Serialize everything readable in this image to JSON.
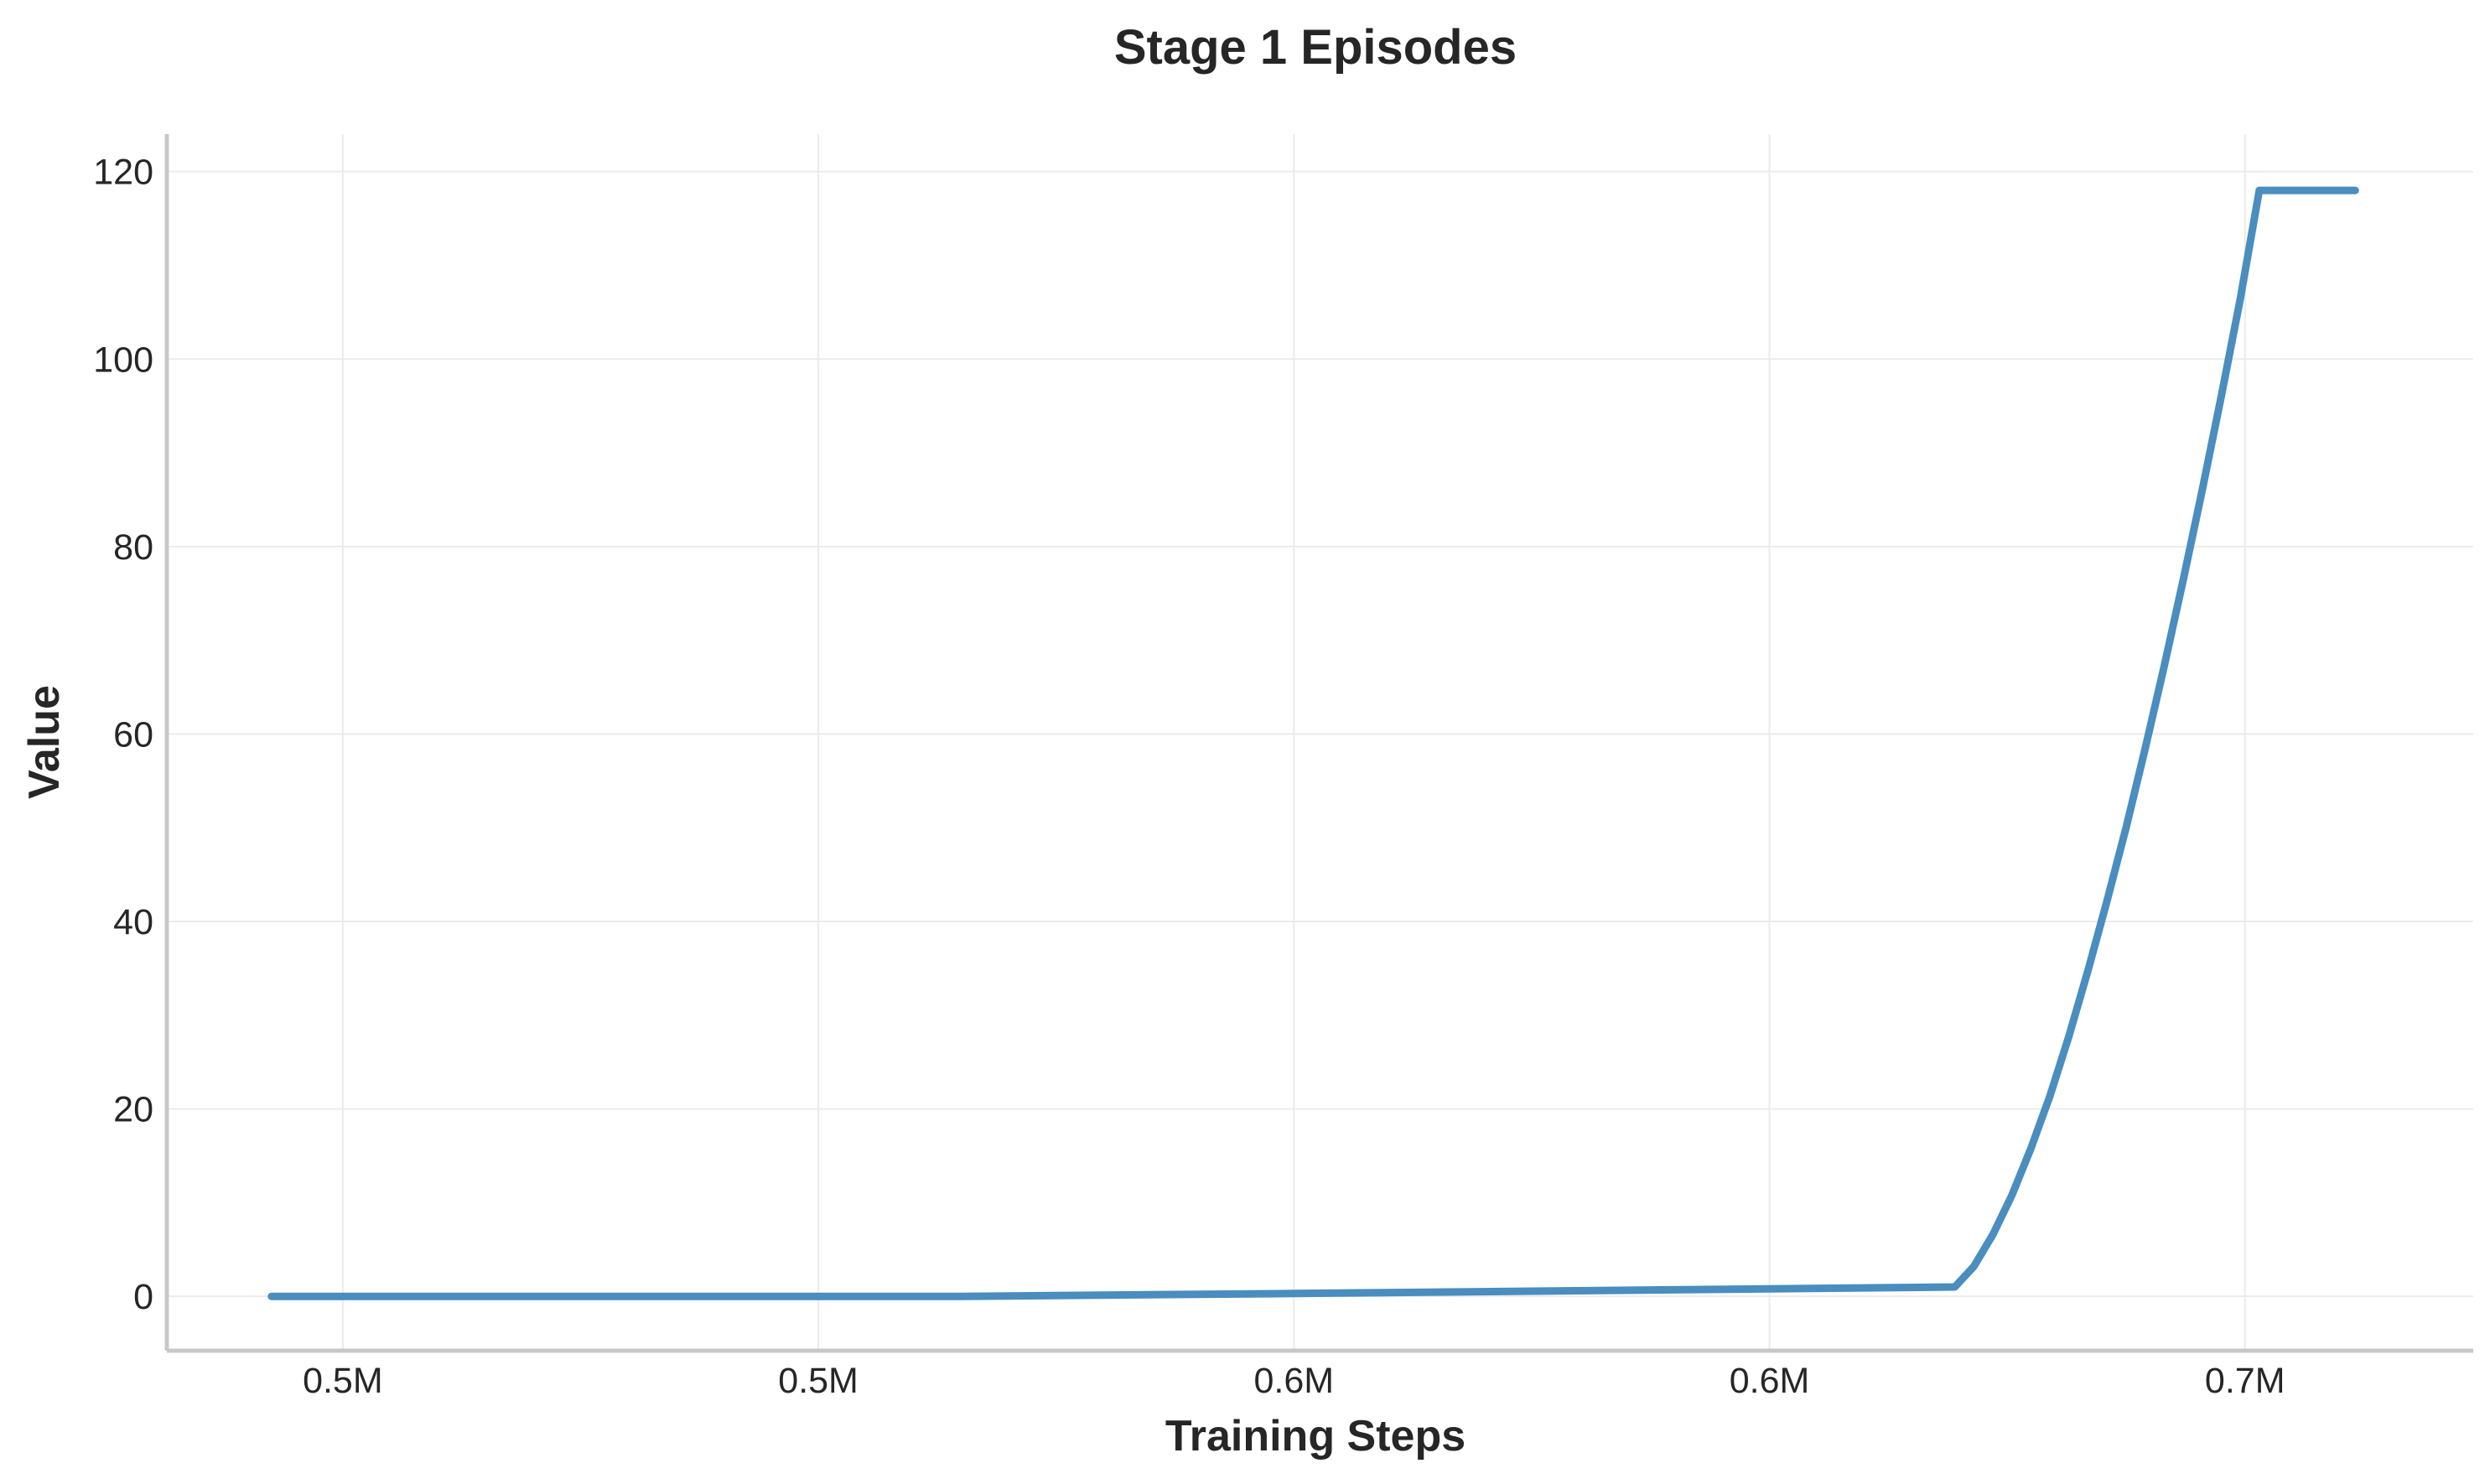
{
  "chart_data": {
    "type": "line",
    "title": "Stage 1 Episodes",
    "xlabel": "Training Steps",
    "ylabel": "Value",
    "x_ticks": [
      {
        "value": 0.485,
        "label": "0.5M"
      },
      {
        "value": 0.535,
        "label": "0.5M"
      },
      {
        "value": 0.585,
        "label": "0.6M"
      },
      {
        "value": 0.635,
        "label": "0.6M"
      },
      {
        "value": 0.685,
        "label": "0.7M"
      }
    ],
    "y_ticks": [
      0,
      20,
      40,
      60,
      80,
      100,
      120
    ],
    "xlim": [
      0.4665,
      0.709
    ],
    "ylim": [
      -5.8,
      124
    ],
    "grid": true,
    "legend": "none",
    "series": [
      {
        "color": "#4a8dbf",
        "x": [
          0.4775,
          0.55,
          0.585,
          0.635,
          0.6545,
          0.6565,
          0.6585,
          0.6605,
          0.6625,
          0.6645,
          0.6665,
          0.6685,
          0.6705,
          0.6725,
          0.6745,
          0.6765,
          0.6785,
          0.6805,
          0.6825,
          0.6845,
          0.6865,
          0.6885,
          0.6905,
          0.6925,
          0.6945,
          0.6966
        ],
        "y": [
          0,
          0,
          0.3,
          0.8,
          1.0,
          3.2,
          6.6,
          10.8,
          15.8,
          21.4,
          27.8,
          34.8,
          42.2,
          50.0,
          58.4,
          67.2,
          76.4,
          86.0,
          96.0,
          106.4,
          118.0,
          118.0,
          118.0,
          118.0,
          118.0,
          118.0
        ]
      }
    ]
  }
}
